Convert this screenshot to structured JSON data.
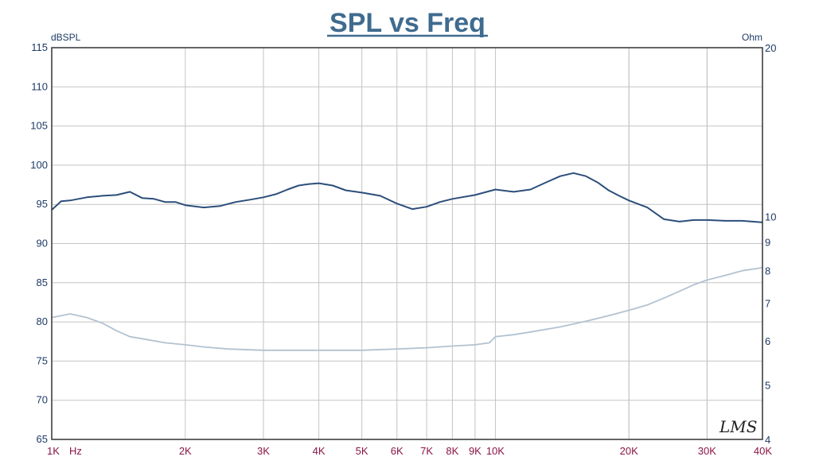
{
  "chart_data": {
    "type": "line",
    "title": "SPL vs Freq",
    "ylabel": "dBSPL",
    "y2label": "Ohm",
    "x_scale": "log",
    "xlim": [
      1000,
      40000
    ],
    "ylim": [
      65,
      115
    ],
    "y2_scale": "log",
    "y2lim": [
      4,
      20
    ],
    "grid": true,
    "x_ticks": [
      {
        "value": 1000,
        "label": "1K"
      },
      {
        "value": 2000,
        "label": "2K"
      },
      {
        "value": 3000,
        "label": "3K"
      },
      {
        "value": 4000,
        "label": "4K"
      },
      {
        "value": 5000,
        "label": "5K"
      },
      {
        "value": 6000,
        "label": "6K"
      },
      {
        "value": 7000,
        "label": "7K"
      },
      {
        "value": 8000,
        "label": "8K"
      },
      {
        "value": 9000,
        "label": "9K"
      },
      {
        "value": 10000,
        "label": "10K"
      },
      {
        "value": 20000,
        "label": "20K"
      },
      {
        "value": 30000,
        "label": "30K"
      },
      {
        "value": 40000,
        "label": "40K"
      }
    ],
    "x_unit_label": "Hz",
    "y_ticks": [
      115,
      110,
      105,
      100,
      95,
      90,
      85,
      80,
      75,
      70,
      65
    ],
    "y2_ticks": [
      20,
      10,
      9,
      8,
      7,
      6,
      5,
      4
    ],
    "series": [
      {
        "axis": "left",
        "color": "#2c4e7a",
        "x": [
          1000,
          1050,
          1100,
          1200,
          1300,
          1400,
          1500,
          1600,
          1700,
          1800,
          1900,
          2000,
          2200,
          2400,
          2600,
          2800,
          3000,
          3200,
          3400,
          3600,
          3800,
          4000,
          4300,
          4600,
          5000,
          5500,
          6000,
          6500,
          7000,
          7500,
          8000,
          9000,
          10000,
          11000,
          12000,
          13000,
          14000,
          15000,
          16000,
          17000,
          18000,
          19000,
          20000,
          22000,
          24000,
          26000,
          28000,
          30000,
          33000,
          36000,
          38000,
          40000
        ],
        "values": [
          94.3,
          95.4,
          95.5,
          95.9,
          96.1,
          96.2,
          96.6,
          95.8,
          95.7,
          95.3,
          95.3,
          94.9,
          94.6,
          94.8,
          95.3,
          95.6,
          95.9,
          96.3,
          96.9,
          97.4,
          97.6,
          97.7,
          97.4,
          96.8,
          96.5,
          96.1,
          95.1,
          94.4,
          94.7,
          95.3,
          95.7,
          96.2,
          96.9,
          96.6,
          96.9,
          97.8,
          98.6,
          99.0,
          98.6,
          97.8,
          96.8,
          96.1,
          95.5,
          94.6,
          93.1,
          92.8,
          93.0,
          93.0,
          92.9,
          92.9,
          92.8,
          92.7
        ]
      },
      {
        "axis": "right",
        "color": "#b3c2d0",
        "x": [
          1000,
          1100,
          1200,
          1300,
          1400,
          1500,
          1600,
          1800,
          2000,
          2200,
          2500,
          3000,
          3500,
          4000,
          5000,
          6000,
          7000,
          8000,
          9000,
          9700,
          10000,
          11000,
          12000,
          14000,
          16000,
          18000,
          20000,
          22000,
          24000,
          26000,
          28000,
          30000,
          33000,
          36000,
          40000
        ],
        "values": [
          6.6,
          6.7,
          6.6,
          6.45,
          6.25,
          6.1,
          6.05,
          5.95,
          5.9,
          5.85,
          5.8,
          5.77,
          5.77,
          5.77,
          5.77,
          5.8,
          5.83,
          5.87,
          5.9,
          5.95,
          6.1,
          6.15,
          6.22,
          6.35,
          6.5,
          6.65,
          6.8,
          6.95,
          7.15,
          7.35,
          7.55,
          7.7,
          7.85,
          8.0,
          8.1
        ]
      }
    ],
    "watermark": "LMS"
  }
}
